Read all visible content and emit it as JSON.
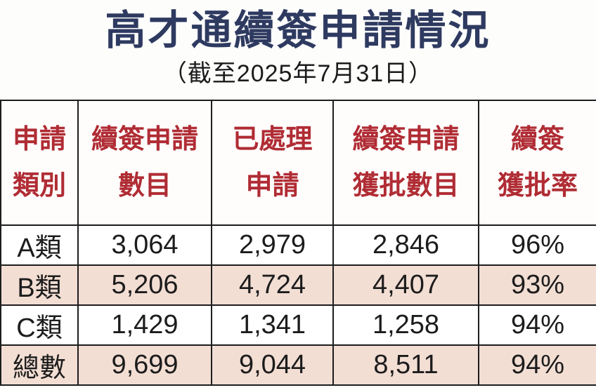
{
  "page": {
    "title": "高才通續簽申請情況",
    "subtitle": "（截至2025年7月31日）"
  },
  "colors": {
    "title_navy": "#2e3a60",
    "header_red": "#b02c34",
    "row_pink": "#f3ded4",
    "border_black": "#1d1d1d",
    "background": "#fdfdfc"
  },
  "table": {
    "columns": [
      {
        "line1": "申請",
        "line2": "類別"
      },
      {
        "line1": "續簽申請",
        "line2": "數目"
      },
      {
        "line1": "已處理",
        "line2": "申請"
      },
      {
        "line1": "續簽申請",
        "line2": "獲批數目"
      },
      {
        "line1": "續簽",
        "line2": "獲批率"
      }
    ],
    "rows": [
      {
        "category": "A類",
        "applications": "3,064",
        "processed": "2,979",
        "approved": "2,846",
        "rate": "96%"
      },
      {
        "category": "B類",
        "applications": "5,206",
        "processed": "4,724",
        "approved": "4,407",
        "rate": "93%"
      },
      {
        "category": "C類",
        "applications": "1,429",
        "processed": "1,341",
        "approved": "1,258",
        "rate": "94%"
      },
      {
        "category": "總數",
        "applications": "9,699",
        "processed": "9,044",
        "approved": "8,511",
        "rate": "94%"
      }
    ]
  },
  "chart_data": {
    "type": "table",
    "title": "高才通續簽申請情況",
    "subtitle": "（截至2025年7月31日）",
    "columns": [
      "申請類別",
      "續簽申請數目",
      "已處理申請",
      "續簽申請獲批數目",
      "續簽獲批率"
    ],
    "rows": [
      [
        "A類",
        3064,
        2979,
        2846,
        "96%"
      ],
      [
        "B類",
        5206,
        4724,
        4407,
        "93%"
      ],
      [
        "C類",
        1429,
        1341,
        1258,
        "94%"
      ],
      [
        "總數",
        9699,
        9044,
        8511,
        "94%"
      ]
    ]
  }
}
